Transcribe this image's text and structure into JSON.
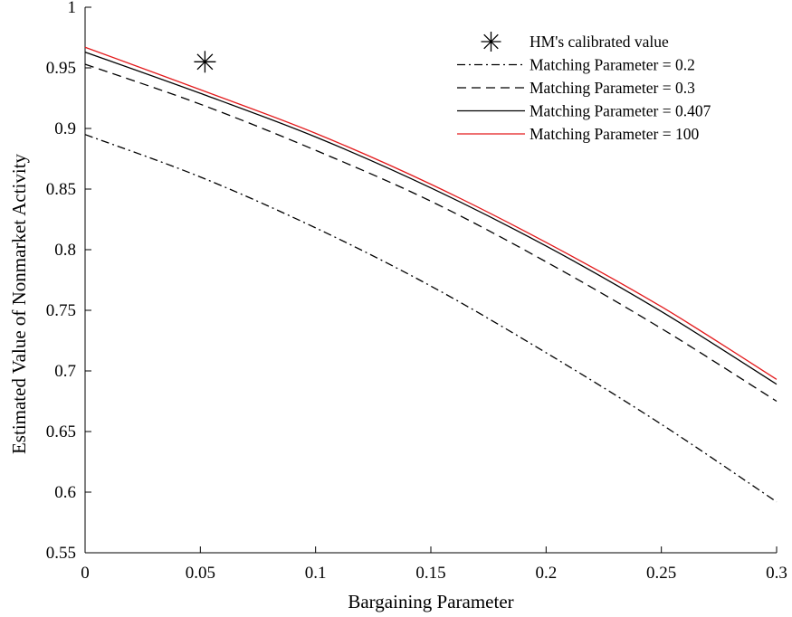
{
  "chart_data": {
    "type": "line",
    "xlabel": "Bargaining Parameter",
    "ylabel": "Estimated Value of Nonmarket Activity",
    "xlim": [
      0,
      0.3
    ],
    "ylim": [
      0.55,
      1
    ],
    "x_ticks": [
      "0",
      "0.05",
      "0.1",
      "0.15",
      "0.2",
      "0.25",
      "0.3"
    ],
    "y_ticks": [
      "0.55",
      "0.6",
      "0.65",
      "0.7",
      "0.75",
      "0.8",
      "0.85",
      "0.9",
      "0.95",
      "1"
    ],
    "grid": false,
    "legend_position": "top-right",
    "x": [
      0,
      0.05,
      0.1,
      0.15,
      0.2,
      0.25,
      0.3
    ],
    "series": [
      {
        "name": "Matching Parameter = 0.2",
        "style": "dash-dot",
        "color": "#000000",
        "values": [
          0.895,
          0.86,
          0.818,
          0.77,
          0.715,
          0.656,
          0.592
        ]
      },
      {
        "name": "Matching Parameter = 0.3",
        "style": "dashed",
        "color": "#000000",
        "values": [
          0.953,
          0.92,
          0.882,
          0.84,
          0.79,
          0.735,
          0.675
        ]
      },
      {
        "name": "Matching Parameter = 0.407",
        "style": "solid",
        "color": "#000000",
        "values": [
          0.963,
          0.929,
          0.893,
          0.851,
          0.803,
          0.749,
          0.689
        ]
      },
      {
        "name": "Matching Parameter = 100",
        "style": "solid",
        "color": "#e31a1c",
        "values": [
          0.967,
          0.932,
          0.896,
          0.854,
          0.806,
          0.753,
          0.693
        ]
      }
    ],
    "marker": {
      "name": "HM's calibrated value",
      "symbol": "asterisk",
      "x": 0.052,
      "y": 0.955
    }
  }
}
